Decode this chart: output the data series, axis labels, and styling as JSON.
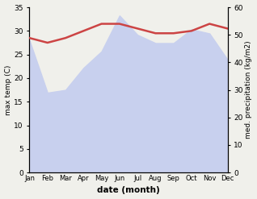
{
  "months": [
    "Jan",
    "Feb",
    "Mar",
    "Apr",
    "May",
    "Jun",
    "Jul",
    "Aug",
    "Sep",
    "Oct",
    "Nov",
    "Dec"
  ],
  "x": [
    0,
    1,
    2,
    3,
    4,
    5,
    6,
    7,
    8,
    9,
    10,
    11
  ],
  "temperature": [
    28.5,
    27.5,
    28.5,
    30.0,
    31.5,
    31.5,
    30.5,
    29.5,
    29.5,
    30.0,
    31.5,
    30.5
  ],
  "precipitation": [
    48.0,
    29.0,
    30.0,
    38.0,
    44.0,
    57.0,
    50.0,
    47.0,
    47.0,
    52.0,
    50.5,
    41.0
  ],
  "temp_color": "#cc4444",
  "precip_fill_color": "#c8d0ee",
  "temp_ylim": [
    0,
    35
  ],
  "precip_ylim": [
    0,
    60
  ],
  "temp_yticks": [
    0,
    5,
    10,
    15,
    20,
    25,
    30,
    35
  ],
  "precip_yticks": [
    0,
    10,
    20,
    30,
    40,
    50,
    60
  ],
  "xlabel": "date (month)",
  "ylabel_left": "max temp (C)",
  "ylabel_right": "med. precipitation (kg/m2)",
  "bg_color": "#f0f0eb",
  "plot_bg_color": "#ffffff"
}
